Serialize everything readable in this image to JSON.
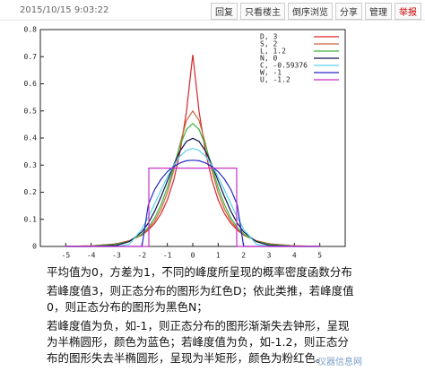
{
  "header": {
    "timestamp": "2015/10/15 9:03:22",
    "buttons": [
      "回复",
      "只看楼主",
      "倒序浏览",
      "分享",
      "管理",
      "举报"
    ]
  },
  "chart_data": {
    "type": "line",
    "x": [
      -5,
      -4,
      -3,
      -2.5,
      -2,
      -1.75,
      -1.5,
      -1.25,
      -1,
      -0.75,
      -0.5,
      -0.25,
      0,
      0.25,
      0.5,
      0.75,
      1,
      1.25,
      1.5,
      1.75,
      2,
      2.5,
      3,
      4,
      5
    ],
    "xlim": [
      -6,
      6
    ],
    "xticks": [
      -5,
      -4,
      -3,
      -2,
      -1,
      0,
      1,
      2,
      3,
      4,
      5
    ],
    "ylim": [
      0,
      0.8
    ],
    "yticks": [
      0,
      0.1,
      0.2,
      0.3,
      0.4,
      0.5,
      0.6,
      0.7,
      0.8
    ],
    "grid": false,
    "legend": "top-right",
    "series": [
      {
        "name": "D, 3",
        "color": "#d62728",
        "values": [
          0.0006,
          0.002,
          0.01,
          0.021,
          0.042,
          0.06,
          0.085,
          0.121,
          0.172,
          0.245,
          0.349,
          0.496,
          0.707,
          0.496,
          0.349,
          0.245,
          0.172,
          0.121,
          0.085,
          0.06,
          0.042,
          0.021,
          0.01,
          0.002,
          0.0006
        ]
      },
      {
        "name": "S, 2",
        "color": "#c8643c",
        "values": [
          0.0004,
          0.002,
          0.009,
          0.02,
          0.043,
          0.064,
          0.094,
          0.138,
          0.199,
          0.281,
          0.378,
          0.464,
          0.5,
          0.464,
          0.378,
          0.281,
          0.199,
          0.138,
          0.094,
          0.064,
          0.043,
          0.02,
          0.009,
          0.002,
          0.0004
        ]
      },
      {
        "name": "L, 1.2",
        "color": "#3cb43c",
        "values": [
          0.0002,
          0.001,
          0.008,
          0.019,
          0.046,
          0.07,
          0.105,
          0.154,
          0.218,
          0.295,
          0.372,
          0.431,
          0.4534,
          0.431,
          0.372,
          0.295,
          0.218,
          0.154,
          0.105,
          0.07,
          0.046,
          0.019,
          0.008,
          0.001,
          0.0002
        ]
      },
      {
        "name": "N, 0",
        "color": "#10104a",
        "values": [
          0,
          0,
          0.004,
          0.018,
          0.054,
          0.086,
          0.13,
          0.183,
          0.242,
          0.301,
          0.352,
          0.387,
          0.399,
          0.387,
          0.352,
          0.301,
          0.242,
          0.183,
          0.13,
          0.086,
          0.054,
          0.018,
          0.004,
          0,
          0
        ]
      },
      {
        "name": "C, -0.59376",
        "color": "#5ad2f0",
        "values": [
          0,
          0,
          0,
          0.008,
          0.064,
          0.108,
          0.157,
          0.208,
          0.257,
          0.3,
          0.333,
          0.354,
          0.3615,
          0.354,
          0.333,
          0.3,
          0.257,
          0.208,
          0.157,
          0.108,
          0.064,
          0.008,
          0,
          0,
          0
        ]
      },
      {
        "name": "W, -1",
        "color": "#2828c8",
        "values": [
          0,
          0,
          0,
          0,
          0,
          0.154,
          0.21,
          0.248,
          0.276,
          0.295,
          0.308,
          0.316,
          0.318,
          0.316,
          0.308,
          0.295,
          0.276,
          0.248,
          0.21,
          0.154,
          0,
          0,
          0,
          0,
          0
        ]
      },
      {
        "name": "U, -1.2",
        "color": "#c832c8",
        "x": [
          -5,
          -1.73,
          -1.73,
          1.73,
          1.73,
          5
        ],
        "values": [
          0,
          0,
          0.289,
          0.289,
          0,
          0
        ]
      }
    ]
  },
  "text": {
    "paragraphs": [
      "平均值为0，方差为1，不同的峰度所呈现的概率密度函数分布",
      "若峰度值3，则正态分布的图形为红色D；依此类推，若峰度值0，则正态分布的图形为黑色N；",
      "若峰度值为负，如-1，则正态分布的图形渐渐失去钟形，呈现为半椭圆形，颜色为蓝色；若峰度值为负，如-1.2，则正态分布的图形失去半椭圆形，呈现为半矩形，颜色为粉红色。"
    ],
    "watermark": "仪器信息网"
  }
}
